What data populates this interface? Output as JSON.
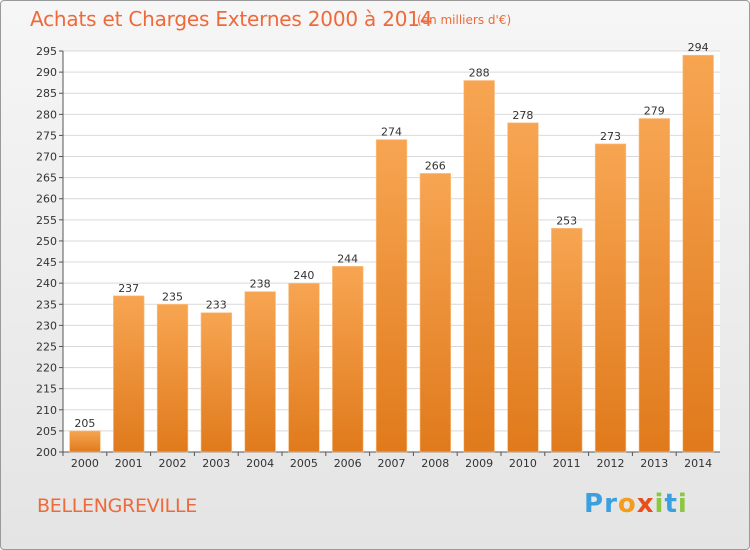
{
  "header": {
    "title": "Achats et Charges Externes 2000 à 2014",
    "subtitle": "(en milliers d'€)"
  },
  "footer": {
    "city": "BELLENGREVILLE",
    "logo_text": "Proxiti"
  },
  "colors": {
    "accent": "#ee6a3a",
    "bar_light": "#f7a552",
    "bar_dark": "#e07a1c",
    "plot_bg": "#ffffff",
    "grid": "#d9d9d9"
  },
  "chart_data": {
    "type": "bar",
    "categories": [
      "2000",
      "2001",
      "2002",
      "2003",
      "2004",
      "2005",
      "2006",
      "2007",
      "2008",
      "2009",
      "2010",
      "2011",
      "2012",
      "2013",
      "2014"
    ],
    "values": [
      205,
      237,
      235,
      233,
      238,
      240,
      244,
      274,
      266,
      288,
      278,
      253,
      273,
      279,
      294
    ],
    "ylim": [
      200,
      295
    ],
    "yticks": [
      200,
      205,
      210,
      215,
      220,
      225,
      230,
      235,
      240,
      245,
      250,
      255,
      260,
      265,
      270,
      275,
      280,
      285,
      290,
      295
    ],
    "grid": true,
    "data_labels": true
  }
}
